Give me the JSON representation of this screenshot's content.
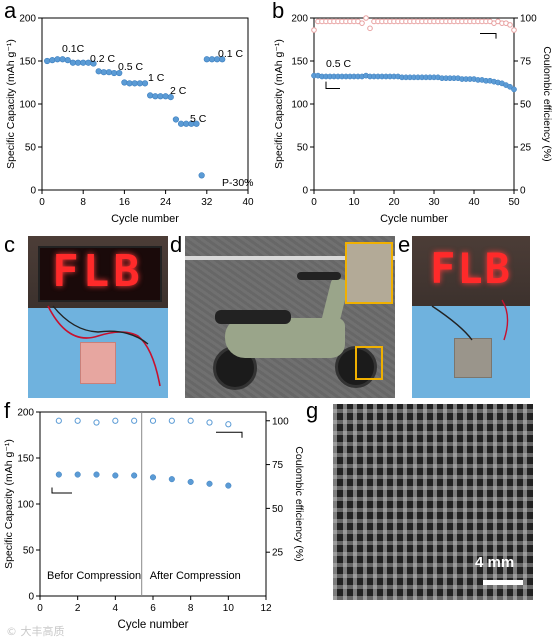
{
  "panel_labels": {
    "a": "a",
    "b": "b",
    "c": "c",
    "d": "d",
    "e": "e",
    "f": "f",
    "g": "g"
  },
  "panel_a": {
    "chart_data": {
      "type": "scatter",
      "xlabel": "Cycle number",
      "ylabel": "Specific Capacity (mAh g⁻¹)",
      "xlim": [
        0,
        40
      ],
      "ylim": [
        0,
        200
      ],
      "xticks": [
        "0",
        "8",
        "16",
        "24",
        "32",
        "40"
      ],
      "yticks": [
        "0",
        "50",
        "100",
        "150",
        "200"
      ],
      "color": "#5b9bd5",
      "annotations": [
        "0.1C",
        "0.2 C",
        "0.5 C",
        "1 C",
        "2 C",
        "5 C",
        "0.1 C",
        "P-30%"
      ],
      "series": [
        {
          "x": [
            1,
            2,
            3,
            4,
            5,
            6,
            7,
            8,
            9,
            10,
            11,
            12,
            13,
            14,
            15,
            16,
            17,
            18,
            19,
            20,
            21,
            22,
            23,
            24,
            25,
            26,
            27,
            28,
            29,
            30,
            31,
            32,
            33,
            34,
            35
          ],
          "y": [
            150,
            151,
            152,
            152,
            151,
            148,
            148,
            148,
            148,
            147,
            138,
            137,
            137,
            136,
            136,
            125,
            124,
            124,
            124,
            124,
            110,
            109,
            109,
            109,
            108,
            82,
            77,
            77,
            77,
            77,
            17,
            152,
            152,
            152,
            152
          ]
        }
      ]
    }
  },
  "panel_b": {
    "chart_data": {
      "type": "scatter",
      "xlabel": "Cycle number",
      "ylabel": "Specific Capacity (mAh g⁻¹)",
      "y2label": "Coulombic efficiency (%)",
      "xlim": [
        0,
        50
      ],
      "ylim": [
        0,
        200
      ],
      "y2lim": [
        0,
        100
      ],
      "xticks": [
        "0",
        "10",
        "20",
        "30",
        "40",
        "50"
      ],
      "yticks": [
        "0",
        "50",
        "100",
        "150",
        "200"
      ],
      "y2ticks": [
        "0",
        "25",
        "50",
        "75",
        "100"
      ],
      "annotation": "0.5 C",
      "capacity_color": "#5b9bd5",
      "efficiency_color": "#e8a0a0",
      "capacity": {
        "x": [
          0,
          1,
          2,
          3,
          4,
          5,
          6,
          7,
          8,
          9,
          10,
          11,
          12,
          13,
          14,
          15,
          16,
          17,
          18,
          19,
          20,
          21,
          22,
          23,
          24,
          25,
          26,
          27,
          28,
          29,
          30,
          31,
          32,
          33,
          34,
          35,
          36,
          37,
          38,
          39,
          40,
          41,
          42,
          43,
          44,
          45,
          46,
          47,
          48,
          49,
          50
        ],
        "y": [
          133,
          133,
          132,
          132,
          132,
          132,
          132,
          132,
          132,
          132,
          132,
          132,
          132,
          133,
          132,
          132,
          132,
          132,
          132,
          132,
          132,
          132,
          131,
          131,
          131,
          131,
          131,
          131,
          131,
          131,
          131,
          131,
          130,
          130,
          130,
          130,
          130,
          129,
          129,
          129,
          129,
          128,
          128,
          127,
          127,
          126,
          125,
          124,
          122,
          120,
          117
        ]
      },
      "efficiency": {
        "x": [
          0,
          1,
          2,
          3,
          4,
          5,
          6,
          7,
          8,
          9,
          10,
          11,
          12,
          13,
          14,
          15,
          16,
          17,
          18,
          19,
          20,
          21,
          22,
          23,
          24,
          25,
          26,
          27,
          28,
          29,
          30,
          31,
          32,
          33,
          34,
          35,
          36,
          37,
          38,
          39,
          40,
          41,
          42,
          43,
          44,
          45,
          46,
          47,
          48,
          49,
          50
        ],
        "y": [
          93,
          98,
          98,
          98,
          98,
          98,
          98,
          98,
          98,
          98,
          98,
          98,
          97,
          100,
          94,
          98,
          98,
          98,
          98,
          98,
          98,
          98,
          98,
          98,
          98,
          98,
          98,
          98,
          98,
          98,
          98,
          98,
          98,
          98,
          98,
          98,
          98,
          98,
          98,
          98,
          98,
          98,
          98,
          98,
          98,
          97,
          98,
          97,
          97,
          96,
          93
        ]
      }
    }
  },
  "panel_c": {
    "sign_text": "FLB"
  },
  "panel_e": {
    "sign_text": "FLB"
  },
  "panel_f": {
    "chart_data": {
      "type": "scatter",
      "xlabel": "Cycle number",
      "ylabel": "Specific Capacity (mAh g⁻¹)",
      "y2label": "Coulombic efficiency (%)",
      "xlim": [
        0,
        12
      ],
      "ylim": [
        0,
        200
      ],
      "y2lim": [
        0,
        100
      ],
      "xticks": [
        "0",
        "2",
        "4",
        "6",
        "8",
        "10",
        "12"
      ],
      "yticks": [
        "0",
        "50",
        "100",
        "150",
        "200"
      ],
      "y2ticks": [
        "25",
        "50",
        "75",
        "100"
      ],
      "region_labels": [
        "Befor Compression",
        "After Compression"
      ],
      "divider_x": 5.4,
      "capacity_color": "#5b9bd5",
      "efficiency_color": "#5b9bd5",
      "capacity": {
        "x": [
          1,
          2,
          3,
          4,
          5,
          6,
          7,
          8,
          9,
          10
        ],
        "y": [
          132,
          132,
          132,
          131,
          131,
          129,
          127,
          124,
          122,
          120
        ]
      },
      "efficiency": {
        "x": [
          1,
          2,
          3,
          4,
          5,
          6,
          7,
          8,
          9,
          10
        ],
        "y": [
          100,
          100,
          99,
          100,
          100,
          100,
          100,
          100,
          99,
          98
        ]
      }
    }
  },
  "panel_g": {
    "scale_label": "4 mm"
  },
  "watermark": "© 大丰高质"
}
